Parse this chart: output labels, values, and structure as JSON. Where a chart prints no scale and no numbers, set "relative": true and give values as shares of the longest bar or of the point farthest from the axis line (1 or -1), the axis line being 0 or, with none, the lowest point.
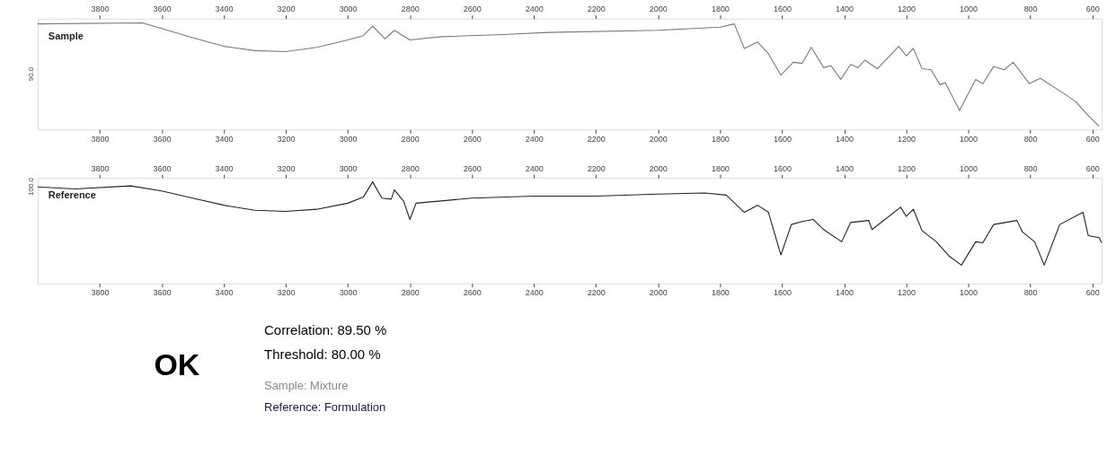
{
  "chart_data": [
    {
      "type": "line",
      "relative": true,
      "xlim": [
        4000,
        570
      ],
      "xticks": [
        3800,
        3600,
        3400,
        3200,
        3000,
        2800,
        2600,
        2400,
        2200,
        2000,
        1800,
        1600,
        1400,
        1200,
        1000,
        800,
        600
      ],
      "x2lim": [
        4000,
        570
      ],
      "x2ticks": [
        3800,
        3600,
        3400,
        3200,
        3000,
        2800,
        2600,
        2400,
        2200,
        2000,
        1800,
        1600,
        1400,
        1200,
        1000,
        800,
        600
      ],
      "grid": false,
      "legend": false,
      "annotations": [
        "90.0"
      ],
      "series": [
        {
          "name": "Sample",
          "color": "#7a7a7a",
          "x": [
            4000,
            3662,
            3500,
            3400,
            3300,
            3200,
            3100,
            3000,
            2950,
            2920,
            2880,
            2850,
            2800,
            2700,
            2500,
            2353,
            2000,
            1800,
            1754,
            1722,
            1679,
            1644,
            1604,
            1564,
            1535,
            1506,
            1466,
            1443,
            1411,
            1379,
            1356,
            1333,
            1293,
            1224,
            1200,
            1177,
            1149,
            1120,
            1091,
            1074,
            1028,
            976,
            953,
            918,
            884,
            855,
            803,
            768,
            693,
            653,
            613,
            578
          ],
          "values": [
            0.99,
            1.0,
            0.86,
            0.78,
            0.74,
            0.73,
            0.77,
            0.84,
            0.88,
            0.97,
            0.85,
            0.93,
            0.84,
            0.87,
            0.89,
            0.91,
            0.93,
            0.96,
            0.99,
            0.76,
            0.82,
            0.71,
            0.51,
            0.63,
            0.62,
            0.77,
            0.58,
            0.6,
            0.47,
            0.61,
            0.58,
            0.65,
            0.57,
            0.78,
            0.69,
            0.76,
            0.57,
            0.56,
            0.42,
            0.44,
            0.18,
            0.47,
            0.43,
            0.59,
            0.56,
            0.63,
            0.43,
            0.48,
            0.34,
            0.26,
            0.13,
            0.03
          ]
        }
      ]
    },
    {
      "type": "line",
      "relative": true,
      "xlim": [
        4000,
        570
      ],
      "xticks": [
        3800,
        3600,
        3400,
        3200,
        3000,
        2800,
        2600,
        2400,
        2200,
        2000,
        1800,
        1600,
        1400,
        1200,
        1000,
        800,
        600
      ],
      "x2lim": [
        4000,
        570
      ],
      "x2ticks": [
        3800,
        3600,
        3400,
        3200,
        3000,
        2800,
        2600,
        2400,
        2200,
        2000,
        1800,
        1600,
        1400,
        1200,
        1000,
        800,
        600
      ],
      "grid": false,
      "legend": false,
      "annotations": [
        "100.0"
      ],
      "series": [
        {
          "name": "Reference",
          "color": "#222222",
          "x": [
            4000,
            3880,
            3700,
            3600,
            3500,
            3400,
            3300,
            3200,
            3100,
            3000,
            2950,
            2920,
            2890,
            2860,
            2850,
            2820,
            2800,
            2780,
            2600,
            2400,
            2200,
            2000,
            1850,
            1780,
            1722,
            1679,
            1644,
            1604,
            1570,
            1535,
            1500,
            1466,
            1408,
            1379,
            1321,
            1310,
            1218,
            1200,
            1177,
            1149,
            1103,
            1062,
            1022,
            976,
            953,
            918,
            843,
            826,
            786,
            755,
            705,
            630,
            613,
            578,
            570
          ],
          "values": [
            0.95,
            0.93,
            0.96,
            0.91,
            0.84,
            0.77,
            0.72,
            0.71,
            0.73,
            0.79,
            0.85,
            1.0,
            0.84,
            0.83,
            0.92,
            0.81,
            0.63,
            0.79,
            0.84,
            0.86,
            0.86,
            0.88,
            0.89,
            0.87,
            0.7,
            0.77,
            0.7,
            0.28,
            0.58,
            0.61,
            0.63,
            0.53,
            0.41,
            0.6,
            0.62,
            0.53,
            0.75,
            0.66,
            0.73,
            0.52,
            0.41,
            0.27,
            0.18,
            0.41,
            0.4,
            0.58,
            0.62,
            0.51,
            0.41,
            0.18,
            0.58,
            0.7,
            0.47,
            0.45,
            0.4
          ]
        }
      ]
    },
    {
      "type": "other",
      "annotations": [
        "OK",
        "Correlation:  89.50 %",
        "Threshold:  80.00 %",
        "Sample:  Mixture",
        "Reference:  Formulation"
      ]
    }
  ]
}
